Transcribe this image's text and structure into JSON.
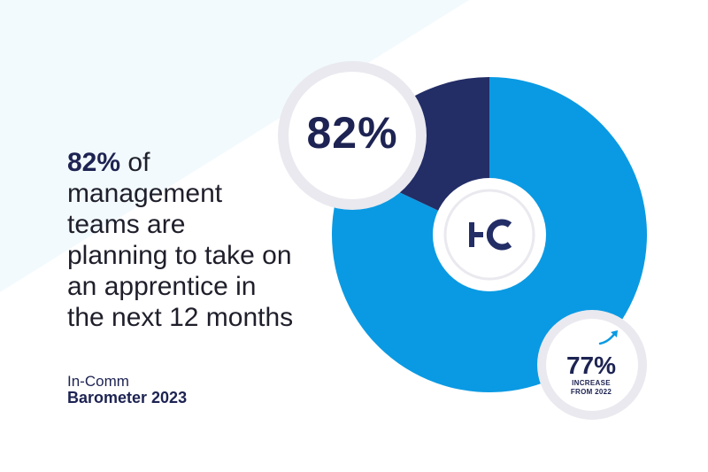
{
  "headline": {
    "percent": "82%",
    "text_lines": [
      "of",
      "management",
      "teams are",
      "planning to take on",
      "an apprentice in",
      "the next 12 months"
    ]
  },
  "brand": {
    "line1": "In-Comm",
    "line2": "Barometer 2023"
  },
  "logo_text": "IC",
  "badge": {
    "value": "77%",
    "caption_line1": "INCREASE",
    "caption_line2": "FROM 2022",
    "icon": "trend-up-arrow-icon"
  },
  "colors": {
    "primary_blue": "#0a9ae3",
    "navy": "#232d66",
    "background_wedge": "#f2fafd",
    "ring_shadow": "#e9e9ef"
  },
  "chart_data": {
    "type": "pie",
    "variant": "donut",
    "title": "",
    "slices": [
      {
        "label": "82%",
        "value": 82,
        "color": "#0a9ae3"
      },
      {
        "label": "",
        "value": 18,
        "color": "#232d66"
      }
    ],
    "center_label": "IC"
  }
}
